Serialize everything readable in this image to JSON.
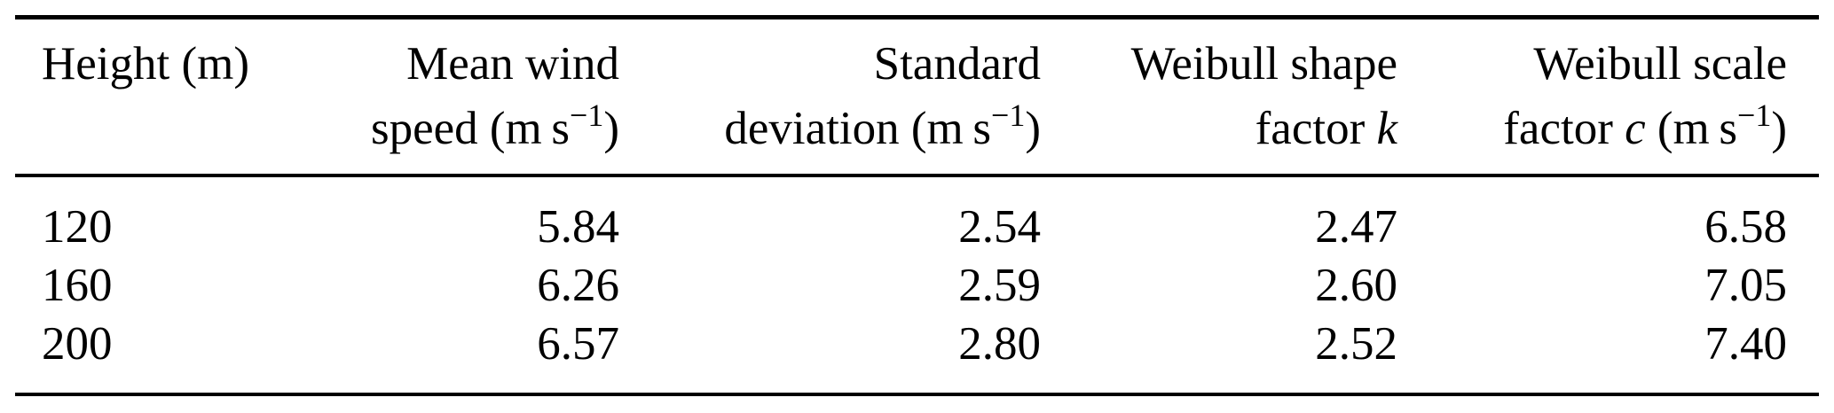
{
  "colors": {
    "background": "#ffffff",
    "text": "#000000",
    "rule": "#000000"
  },
  "header": {
    "c1_l1": "Height (m)",
    "c2_l1": "Mean wind",
    "c2_l2_pre": "speed (m s",
    "c2_l2_sup": "−1",
    "c2_l2_post": ")",
    "c3_l1": "Standard",
    "c3_l2_pre": "deviation (m s",
    "c3_l2_sup": "−1",
    "c3_l2_post": ")",
    "c4_l1": "Weibull shape",
    "c4_l2_pre": "factor ",
    "c4_l2_var": "k",
    "c5_l1": "Weibull scale",
    "c5_l2_pre": "factor ",
    "c5_l2_var": "c",
    "c5_l2_mid": " (m s",
    "c5_l2_sup": "−1",
    "c5_l2_post": ")"
  },
  "rows": [
    {
      "height": "120",
      "mean_wind_speed": "5.84",
      "std_dev": "2.54",
      "shape_k": "2.47",
      "scale_c": "6.58"
    },
    {
      "height": "160",
      "mean_wind_speed": "6.26",
      "std_dev": "2.59",
      "shape_k": "2.60",
      "scale_c": "7.05"
    },
    {
      "height": "200",
      "mean_wind_speed": "6.57",
      "std_dev": "2.80",
      "shape_k": "2.52",
      "scale_c": "7.40"
    }
  ]
}
